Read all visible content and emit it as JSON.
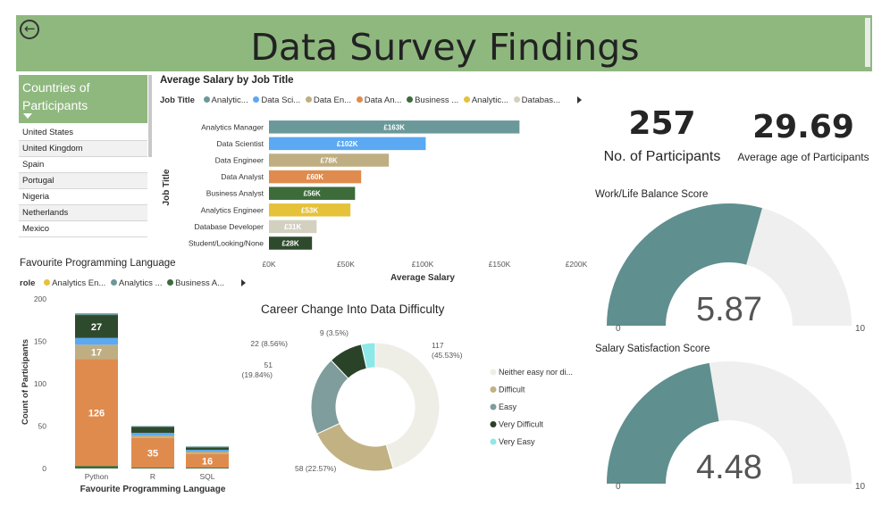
{
  "header": {
    "title": "Data Survey Findings",
    "back_icon": "back-arrow-icon",
    "bg_color": "#8fb87f"
  },
  "slicer": {
    "title": "Countries of Participants",
    "items": [
      "United States",
      "United Kingdom",
      "Spain",
      "Portugal",
      "Nigeria",
      "Netherlands",
      "Mexico"
    ]
  },
  "salary_chart": {
    "title": "Average Salary by Job Title",
    "legend_label": "Job Title",
    "legend": [
      "Analytic...",
      "Data Sci...",
      "Data En...",
      "Data An...",
      "Business ...",
      "Analytic...",
      "Databas..."
    ]
  },
  "language_chart": {
    "title": "Favourite Programming Language",
    "legend_label": "role",
    "legend": [
      "Analytics En...",
      "Analytics ...",
      "Business A..."
    ]
  },
  "difficulty_chart": {
    "title": "Career Change Into Data Difficulty"
  },
  "kpis": {
    "participants": {
      "value": "257",
      "label": "No. of Participants"
    },
    "avg_age": {
      "value": "29.69",
      "label": "Average age of Participants"
    }
  },
  "gauges": {
    "worklife": {
      "title": "Work/Life Balance Score"
    },
    "salary": {
      "title": "Salary Satisfaction Score"
    }
  },
  "chart_data": [
    {
      "type": "bar",
      "orientation": "horizontal",
      "title": "Average Salary by Job Title",
      "xlabel": "Average Salary",
      "ylabel": "Job Title",
      "categories": [
        "Analytics Manager",
        "Data Scientist",
        "Data Engineer",
        "Data Analyst",
        "Business Analyst",
        "Analytics Engineer",
        "Database Developer",
        "Student/Looking/None"
      ],
      "values": [
        163,
        102,
        78,
        60,
        56,
        53,
        31,
        28
      ],
      "data_labels": [
        "£163K",
        "£102K",
        "£78K",
        "£60K",
        "£56K",
        "£53K",
        "£31K",
        "£28K"
      ],
      "colors": [
        "#6b9999",
        "#5aa9f2",
        "#bfae82",
        "#e08b4e",
        "#3d6b3a",
        "#e5c23a",
        "#d4d0c0",
        "#2e4a2c"
      ],
      "xlim": [
        0,
        200
      ],
      "xticks": [
        "£0K",
        "£50K",
        "£100K",
        "£150K",
        "£200K"
      ]
    },
    {
      "type": "bar",
      "stacked": true,
      "title": "Favourite Programming Language",
      "xlabel": "Favourite Programming Language",
      "ylabel": "Count of Participants",
      "categories": [
        "Python",
        "R",
        "SQL"
      ],
      "ylim": [
        0,
        200
      ],
      "yticks": [
        "0",
        "50",
        "100",
        "150",
        "200"
      ],
      "series": [
        {
          "values": [
            3,
            1,
            1
          ],
          "color": "#3d6b3a"
        },
        {
          "values": [
            126,
            35,
            16
          ],
          "color": "#e08b4e",
          "labels": [
            "126",
            "35",
            "16"
          ]
        },
        {
          "values": [
            17,
            3,
            3
          ],
          "color": "#bfae82",
          "labels": [
            "17",
            "",
            ""
          ]
        },
        {
          "values": [
            8,
            3,
            2
          ],
          "color": "#5aa9f2"
        },
        {
          "values": [
            27,
            7,
            3
          ],
          "color": "#2e4a2c",
          "labels": [
            "27",
            "",
            ""
          ]
        },
        {
          "values": [
            2,
            1,
            1
          ],
          "color": "#6b9999"
        }
      ]
    },
    {
      "type": "pie",
      "donut": true,
      "title": "Career Change Into Data Difficulty",
      "slices": [
        {
          "name": "Neither easy nor di...",
          "value": 117,
          "label": "117\n(45.53%)",
          "color": "#efeee6"
        },
        {
          "name": "Difficult",
          "value": 58,
          "label": "58 (22.57%)",
          "color": "#c2b183"
        },
        {
          "name": "Easy",
          "value": 51,
          "label": "51\n(19.84%)",
          "color": "#7f9d9d"
        },
        {
          "name": "Very Difficult",
          "value": 22,
          "label": "22 (8.56%)",
          "color": "#2a4228"
        },
        {
          "name": "Very Easy",
          "value": 9,
          "label": "9 (3.5%)",
          "color": "#8ee8e8"
        }
      ]
    },
    {
      "type": "gauge",
      "title": "Work/Life Balance Score",
      "value": 5.87,
      "min": 0,
      "max": 10,
      "value_label": "5.87",
      "min_label": "0",
      "max_label": "10",
      "fill_color": "#5f8f8f",
      "track_color": "#efefef"
    },
    {
      "type": "gauge",
      "title": "Salary Satisfaction Score",
      "value": 4.48,
      "min": 0,
      "max": 10,
      "value_label": "4.48",
      "min_label": "0",
      "max_label": "10",
      "fill_color": "#5f8f8f",
      "track_color": "#efefef"
    }
  ]
}
